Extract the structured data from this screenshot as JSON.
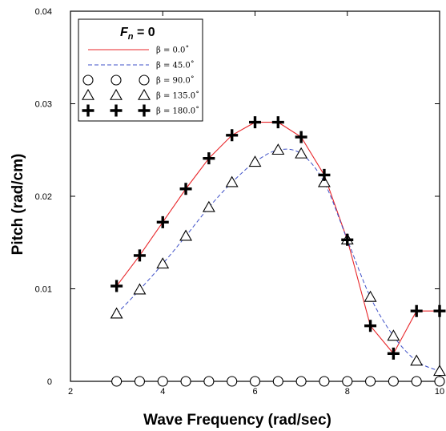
{
  "chart_data": {
    "type": "line",
    "xlabel": "Wave Frequency (rad/sec)",
    "ylabel": "Pitch (rad/cm)",
    "xlim": [
      2,
      10
    ],
    "ylim": [
      0,
      0.04
    ],
    "x_ticks": [
      2,
      4,
      6,
      8,
      10
    ],
    "y_ticks": [
      0,
      0.01,
      0.02,
      0.03,
      0.04
    ],
    "x_tick_labels": [
      "2",
      "4",
      "6",
      "8",
      "10"
    ],
    "y_tick_labels": [
      "0",
      "0.01",
      "0.02",
      "0.03",
      "0.04"
    ],
    "legend": {
      "title": "F",
      "title_subscript": "n",
      "title_suffix": " =  0",
      "placement": "top-left"
    },
    "series": [
      {
        "name": "β = 0.0˚",
        "style": "line",
        "color": "#e8262a",
        "x": [
          3,
          3.5,
          4,
          4.5,
          5,
          5.5,
          6,
          6.5,
          7,
          7.5,
          8,
          8.5,
          9,
          9.5,
          10
        ],
        "y": [
          0.0103,
          0.0136,
          0.0172,
          0.0208,
          0.0241,
          0.0266,
          0.028,
          0.028,
          0.0264,
          0.0223,
          0.0153,
          0.006,
          0.003,
          0.0076,
          0.0076
        ]
      },
      {
        "name": "β = 45.0˚",
        "style": "dashed",
        "color": "#3f51c8",
        "x": [
          3,
          3.5,
          4,
          4.5,
          5,
          5.5,
          6,
          6.5,
          7,
          7.5,
          8,
          8.5,
          9,
          9.5,
          10
        ],
        "y": [
          0.0073,
          0.0099,
          0.0127,
          0.0157,
          0.0188,
          0.0215,
          0.0237,
          0.025,
          0.0246,
          0.0215,
          0.0153,
          0.0091,
          0.0049,
          0.0022,
          0.0011
        ]
      },
      {
        "name": "β = 90.0˚",
        "style": "circle",
        "color": "#000000",
        "x": [
          3,
          3.5,
          4,
          4.5,
          5,
          5.5,
          6,
          6.5,
          7,
          7.5,
          8,
          8.5,
          9,
          9.5,
          10
        ],
        "y": [
          0,
          0,
          0,
          0,
          0,
          0,
          0,
          0,
          0,
          0,
          0,
          0,
          0,
          0,
          0
        ]
      },
      {
        "name": "β = 135.0˚",
        "style": "triangle",
        "color": "#000000",
        "x": [
          3,
          3.5,
          4,
          4.5,
          5,
          5.5,
          6,
          6.5,
          7,
          7.5,
          8,
          8.5,
          9,
          9.5,
          10
        ],
        "y": [
          0.0073,
          0.0099,
          0.0127,
          0.0157,
          0.0188,
          0.0215,
          0.0237,
          0.025,
          0.0246,
          0.0215,
          0.0153,
          0.0091,
          0.0049,
          0.0022,
          0.0011
        ]
      },
      {
        "name": "β = 180.0˚",
        "style": "plus",
        "color": "#000000",
        "x": [
          3,
          3.5,
          4,
          4.5,
          5,
          5.5,
          6,
          6.5,
          7,
          7.5,
          8,
          8.5,
          9,
          9.5,
          10
        ],
        "y": [
          0.0103,
          0.0136,
          0.0172,
          0.0208,
          0.0241,
          0.0266,
          0.028,
          0.028,
          0.0264,
          0.0223,
          0.0153,
          0.006,
          0.003,
          0.0076,
          0.0076
        ]
      }
    ]
  }
}
